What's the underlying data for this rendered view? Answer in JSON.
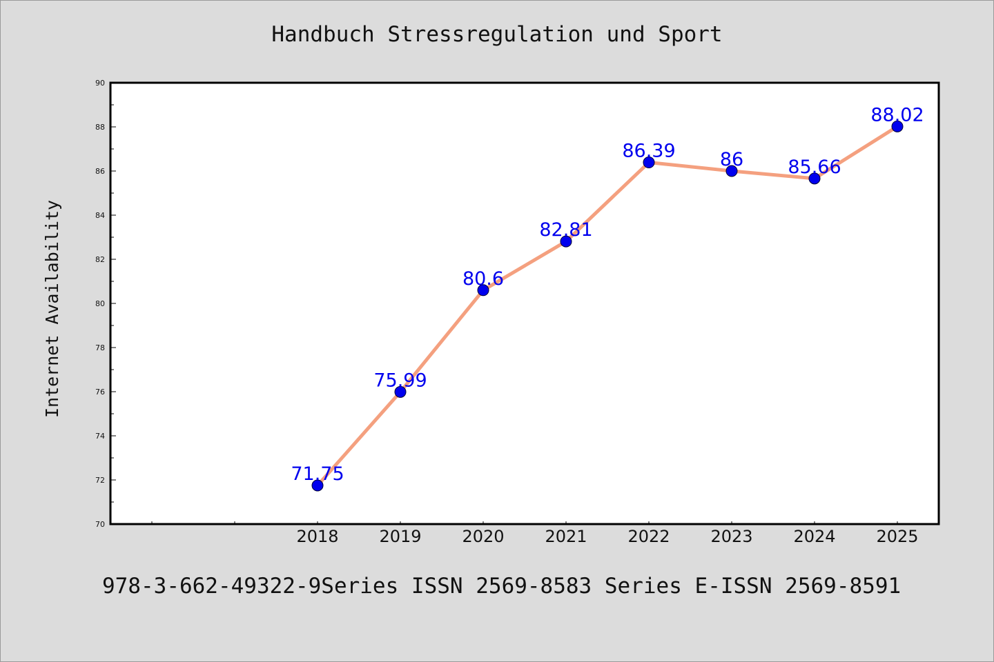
{
  "title": "Handbuch Stressregulation und Sport",
  "footer": "978-3-662-49322-9Series ISSN 2569-8583 Series E-ISSN 2569-8591",
  "colors": {
    "background": "#dcdcdc",
    "plot_background": "#ffffff",
    "line": "#f4a07f",
    "marker": "#0000ee",
    "data_label": "#0000ee"
  },
  "chart_data": {
    "type": "line",
    "title": "Handbuch Stressregulation und Sport",
    "xlabel": "",
    "ylabel": "Internet Availability",
    "categories": [
      "2018",
      "2019",
      "2020",
      "2021",
      "2022",
      "2023",
      "2024",
      "2025"
    ],
    "series": [
      {
        "values": [
          71.75,
          75.99,
          80.6,
          82.81,
          86.39,
          86,
          85.66,
          88.02
        ],
        "labels": [
          "71.75",
          "75.99",
          "80.6",
          "82.81",
          "86.39",
          "86",
          "85.66",
          "88.02"
        ]
      }
    ],
    "ylim": [
      70,
      90
    ],
    "yticks": [
      "70",
      "72",
      "74",
      "76",
      "78",
      "80",
      "82",
      "84",
      "86",
      "88",
      "90"
    ],
    "grid": false,
    "legend": "none"
  }
}
